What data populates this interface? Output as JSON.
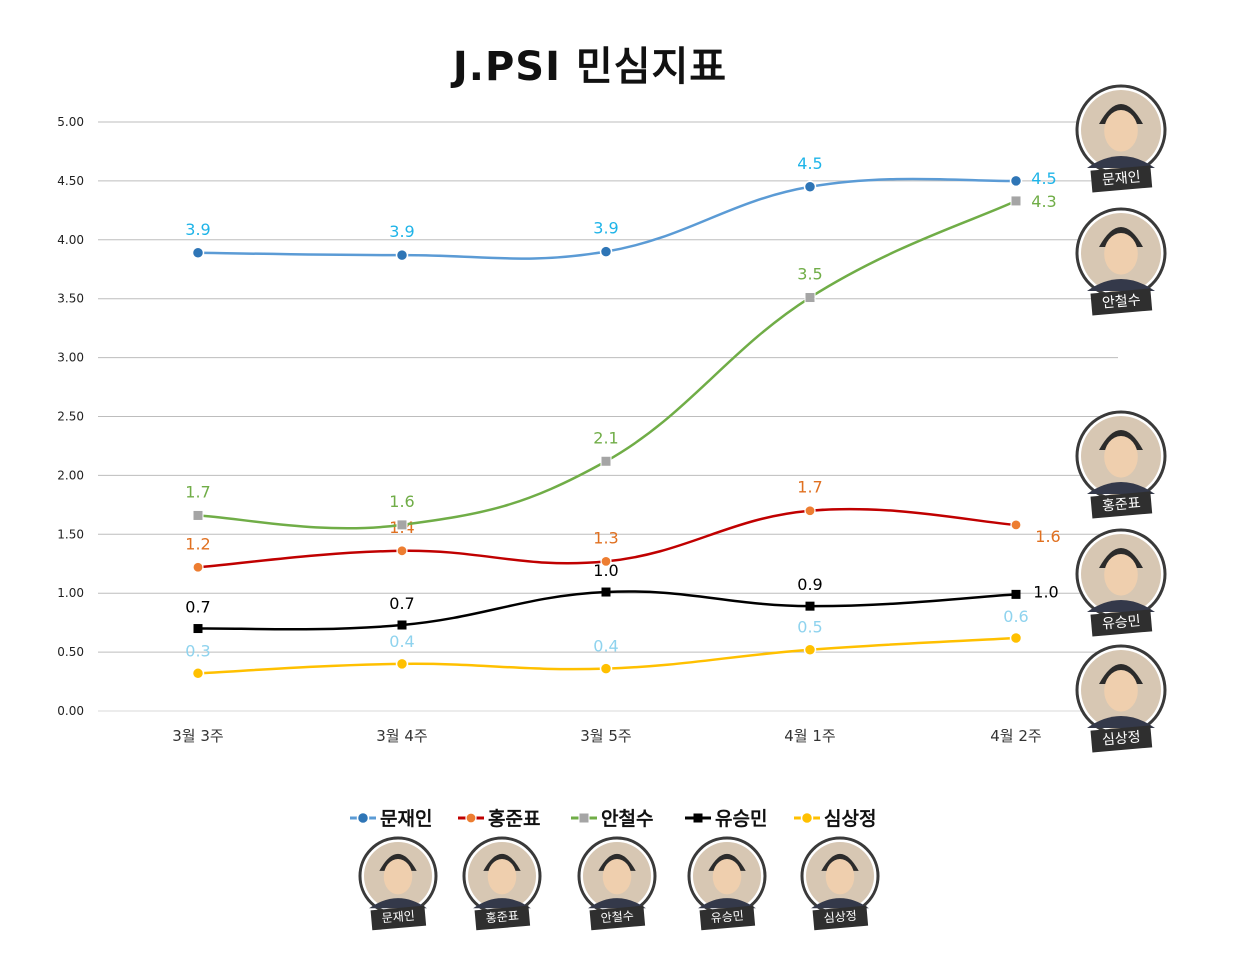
{
  "chart_data": {
    "type": "line",
    "title": "J.PSI 민심지표",
    "categories": [
      "3월 3주",
      "3월 4주",
      "3월 5주",
      "4월 1주",
      "4월 2주"
    ],
    "ylim": [
      0,
      5
    ],
    "y_ticks": [
      "0.00",
      "0.50",
      "1.00",
      "1.50",
      "2.00",
      "2.50",
      "3.00",
      "3.50",
      "4.00",
      "4.50",
      "5.00"
    ],
    "grid": true,
    "legend_position": "bottom",
    "series": [
      {
        "name": "문재인",
        "color": "#5b9bd5",
        "label_color": "#1fb4e8",
        "marker": "circle",
        "values": [
          3.89,
          3.87,
          3.9,
          4.45,
          4.5
        ],
        "labels": [
          "3.9",
          "3.9",
          "3.9",
          "4.5",
          "4.5"
        ]
      },
      {
        "name": "홍준표",
        "color": "#c00000",
        "label_color": "#e07020",
        "marker": "circle-orange",
        "values": [
          1.22,
          1.36,
          1.27,
          1.7,
          1.58
        ],
        "labels": [
          "1.2",
          "1.4",
          "1.3",
          "1.7",
          "1.6"
        ]
      },
      {
        "name": "안철수",
        "color": "#70ad47",
        "label_color": "#70ad47",
        "marker": "square-gray",
        "values": [
          1.66,
          1.58,
          2.12,
          3.51,
          4.33
        ],
        "labels": [
          "1.7",
          "1.6",
          "2.1",
          "3.5",
          "4.3"
        ]
      },
      {
        "name": "유승민",
        "color": "#000000",
        "label_color": "#000000",
        "marker": "square",
        "values": [
          0.7,
          0.73,
          1.01,
          0.89,
          0.99
        ],
        "labels": [
          "0.7",
          "0.7",
          "1.0",
          "0.9",
          "1.0"
        ]
      },
      {
        "name": "심상정",
        "color": "#ffc000",
        "label_color": "#8fd3ee",
        "marker": "circle",
        "values": [
          0.32,
          0.4,
          0.36,
          0.52,
          0.62
        ],
        "labels": [
          "0.3",
          "0.4",
          "0.4",
          "0.5",
          "0.6"
        ]
      }
    ],
    "side_portraits": [
      "문재인",
      "안철수",
      "홍준표",
      "유승민",
      "심상정"
    ],
    "legend_portraits": [
      "문재인",
      "홍준표",
      "안철수",
      "유승민",
      "심상정"
    ]
  }
}
